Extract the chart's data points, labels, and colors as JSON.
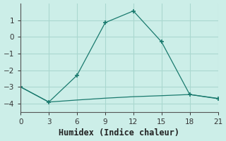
{
  "xlabel": "Humidex (Indice chaleur)",
  "background_color": "#cceee8",
  "line_color": "#1a7a6e",
  "grid_color": "#aad8d0",
  "line1_x": [
    0,
    3,
    6,
    9,
    12,
    15,
    18,
    21
  ],
  "line1_y": [
    -3.0,
    -3.9,
    -2.3,
    0.85,
    1.55,
    -0.3,
    -3.45,
    -3.7
  ],
  "line2_x": [
    0,
    3,
    6,
    9,
    12,
    15,
    18,
    21
  ],
  "line2_y": [
    -3.0,
    -3.9,
    -3.78,
    -3.67,
    -3.58,
    -3.52,
    -3.45,
    -3.68
  ],
  "marker_x": [
    0,
    3,
    6,
    9,
    12,
    15,
    18,
    21
  ],
  "marker_y1": [
    -3.0,
    -3.9,
    -2.3,
    0.85,
    1.55,
    -0.3,
    -3.45,
    -3.7
  ],
  "xlim": [
    0,
    21
  ],
  "ylim": [
    -4.5,
    2.0
  ],
  "xticks": [
    0,
    3,
    6,
    9,
    12,
    15,
    18,
    21
  ],
  "yticks": [
    -4,
    -3,
    -2,
    -1,
    0,
    1
  ],
  "tick_fontsize": 7.5,
  "xlabel_fontsize": 8.5
}
